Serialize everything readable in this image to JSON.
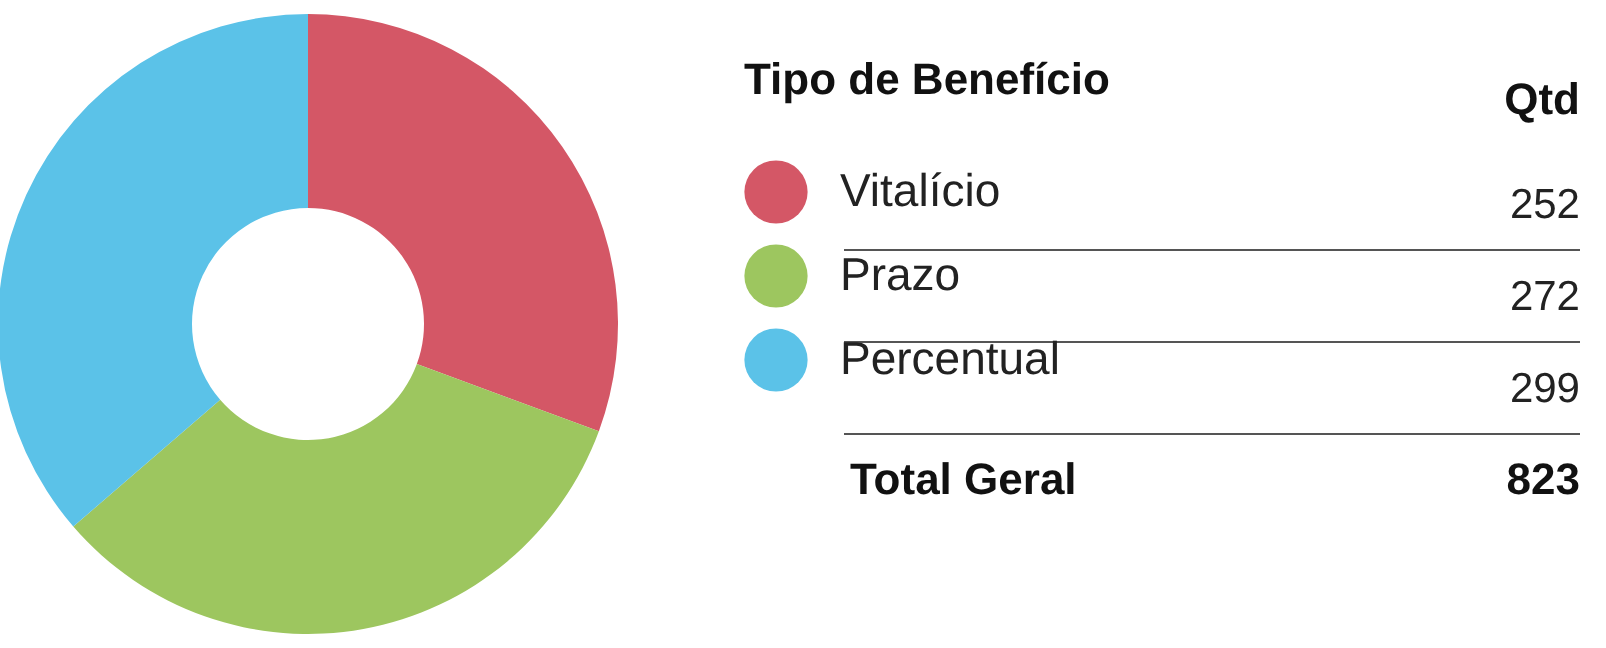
{
  "chart_data": {
    "type": "donut",
    "legend_title": "Tipo de Benefício",
    "categories": [
      "Vitalício",
      "Prazo",
      "Percentual"
    ],
    "values": [
      252,
      272,
      299
    ],
    "colors": [
      "#d45766",
      "#9dc65f",
      "#5bc2e8"
    ],
    "data_labels": true,
    "legend": "right",
    "annotations": [
      "Qtd",
      "Total Geral",
      "823"
    ]
  }
}
